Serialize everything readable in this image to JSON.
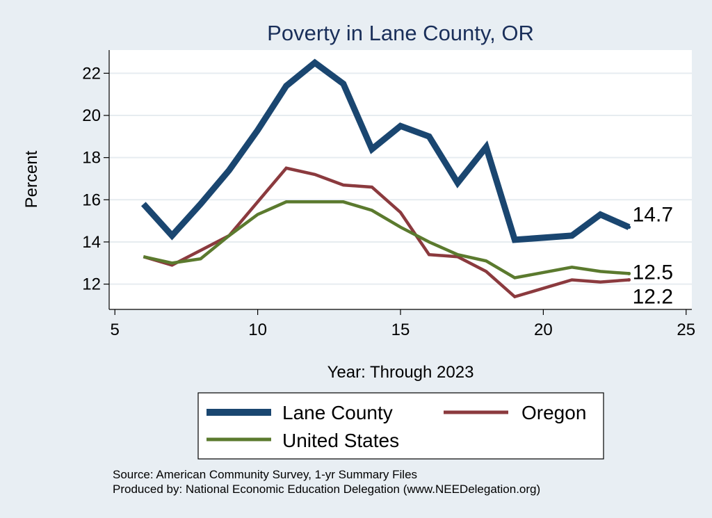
{
  "chart_data": {
    "type": "line",
    "title": "Poverty in Lane County, OR",
    "xlabel": "Year: Through 2023",
    "ylabel": "Percent",
    "xlim": [
      4.8,
      25.2
    ],
    "ylim": [
      10.8,
      23.1
    ],
    "x_ticks": [
      5,
      10,
      15,
      20,
      25
    ],
    "y_ticks": [
      12,
      14,
      16,
      18,
      20,
      22
    ],
    "grid": true,
    "series": [
      {
        "name": "Lane County",
        "color": "#1a4670",
        "x": [
          6,
          7,
          8,
          9,
          10,
          11,
          12,
          13,
          14,
          15,
          16,
          17,
          18,
          19,
          21,
          22,
          23
        ],
        "y": [
          15.8,
          14.3,
          15.8,
          17.4,
          19.3,
          21.4,
          22.5,
          21.5,
          18.4,
          19.5,
          19.0,
          16.8,
          18.5,
          14.1,
          14.3,
          15.3,
          14.7
        ],
        "end_label": "14.7"
      },
      {
        "name": "Oregon",
        "color": "#8b3a3e",
        "x": [
          6,
          7,
          8,
          9,
          10,
          11,
          12,
          13,
          14,
          15,
          16,
          17,
          18,
          19,
          21,
          22,
          23
        ],
        "y": [
          13.3,
          12.9,
          13.6,
          14.3,
          15.9,
          17.5,
          17.2,
          16.7,
          16.6,
          15.4,
          13.4,
          13.3,
          12.6,
          11.4,
          12.2,
          12.1,
          12.2
        ],
        "end_label": "12.2"
      },
      {
        "name": "United States",
        "color": "#5b7a2e",
        "x": [
          6,
          7,
          8,
          9,
          10,
          11,
          12,
          13,
          14,
          15,
          16,
          17,
          18,
          19,
          21,
          22,
          23
        ],
        "y": [
          13.3,
          13.0,
          13.2,
          14.3,
          15.3,
          15.9,
          15.9,
          15.9,
          15.5,
          14.7,
          14.0,
          13.4,
          13.1,
          12.3,
          12.8,
          12.6,
          12.5
        ],
        "end_label": "12.5"
      }
    ],
    "legend": {
      "placement": "bottom"
    },
    "notes": [
      "Source: American Community Survey, 1-yr Summary Files",
      "Produced by: National Economic Education Delegation (www.NEEDelegation.org)"
    ]
  }
}
